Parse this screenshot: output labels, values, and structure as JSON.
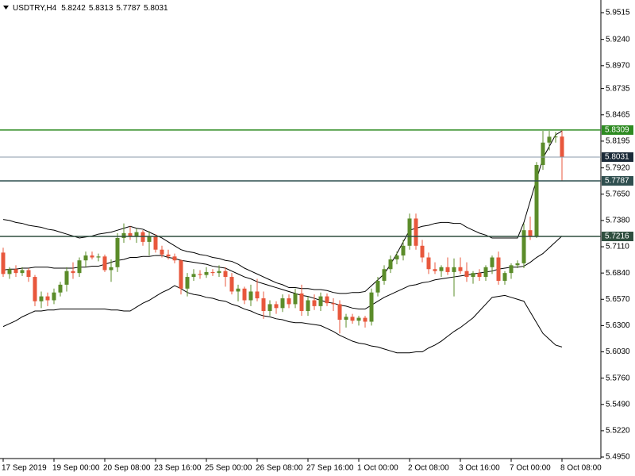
{
  "chart_data": {
    "type": "candlestick",
    "symbol": "USDTRY,H4",
    "categories": [
      "17 Sep 2019",
      null,
      null,
      null,
      null,
      null,
      null,
      null,
      "19 Sep 00:00",
      null,
      null,
      null,
      null,
      null,
      null,
      null,
      "20 Sep 08:00",
      null,
      null,
      null,
      null,
      null,
      null,
      null,
      "23 Sep 16:00",
      null,
      null,
      null,
      null,
      null,
      null,
      null,
      "25 Sep 00:00",
      null,
      null,
      null,
      null,
      null,
      null,
      null,
      "26 Sep 08:00",
      null,
      null,
      null,
      null,
      null,
      null,
      null,
      "27 Sep 16:00",
      null,
      null,
      null,
      null,
      null,
      null,
      null,
      "1 Oct 00:00",
      null,
      null,
      null,
      null,
      null,
      null,
      null,
      "2 Oct 08:00",
      null,
      null,
      null,
      null,
      null,
      null,
      null,
      "3 Oct 16:00",
      null,
      null,
      null,
      null,
      null,
      null,
      null,
      "7 Oct 00:00",
      null,
      null,
      null,
      null,
      null,
      null,
      null,
      "8 Oct 08:00"
    ],
    "open": [
      5.705,
      5.683,
      5.688,
      5.684,
      5.687,
      5.68,
      5.655,
      5.66,
      5.656,
      5.664,
      5.672,
      5.686,
      5.684,
      5.697,
      5.702,
      5.7,
      5.701,
      5.687,
      5.69,
      5.72,
      5.725,
      5.722,
      5.726,
      5.716,
      5.722,
      5.708,
      5.703,
      5.701,
      5.697,
      5.668,
      5.68,
      5.683,
      5.682,
      5.685,
      5.684,
      5.686,
      5.68,
      5.665,
      5.668,
      5.656,
      5.665,
      5.658,
      5.645,
      5.652,
      5.648,
      5.658,
      5.652,
      5.663,
      5.645,
      5.656,
      5.65,
      5.66,
      5.653,
      5.652,
      5.636,
      5.639,
      5.635,
      5.638,
      5.634,
      5.664,
      5.676,
      5.688,
      5.698,
      5.702,
      5.712,
      5.74,
      5.712,
      5.7,
      5.688,
      5.686,
      5.69,
      5.685,
      5.69,
      5.686,
      5.68,
      5.684,
      5.68,
      5.69,
      5.7,
      5.676,
      5.684,
      5.692,
      5.694,
      5.728,
      5.722,
      5.795,
      5.818,
      5.824,
      5.8242
    ],
    "high": [
      5.71,
      5.69,
      5.692,
      5.69,
      5.689,
      5.682,
      5.665,
      5.664,
      5.668,
      5.675,
      5.69,
      5.695,
      5.7,
      5.706,
      5.706,
      5.704,
      5.703,
      5.698,
      5.725,
      5.735,
      5.732,
      5.73,
      5.728,
      5.727,
      5.724,
      5.712,
      5.708,
      5.704,
      5.698,
      5.684,
      5.688,
      5.687,
      5.69,
      5.688,
      5.692,
      5.69,
      5.684,
      5.672,
      5.67,
      5.672,
      5.678,
      5.665,
      5.656,
      5.655,
      5.662,
      5.662,
      5.668,
      5.672,
      5.66,
      5.662,
      5.664,
      5.663,
      5.658,
      5.656,
      5.642,
      5.642,
      5.64,
      5.64,
      5.668,
      5.68,
      5.692,
      5.702,
      5.706,
      5.718,
      5.745,
      5.745,
      5.718,
      5.705,
      5.695,
      5.692,
      5.7,
      5.699,
      5.7,
      5.695,
      5.686,
      5.688,
      5.692,
      5.702,
      5.706,
      5.686,
      5.694,
      5.697,
      5.735,
      5.742,
      5.798,
      5.83,
      5.83,
      5.829,
      5.8313
    ],
    "low": [
      5.68,
      5.678,
      5.68,
      5.681,
      5.675,
      5.65,
      5.648,
      5.65,
      5.652,
      5.66,
      5.665,
      5.678,
      5.68,
      5.69,
      5.698,
      5.696,
      5.685,
      5.675,
      5.685,
      5.715,
      5.718,
      5.715,
      5.712,
      5.702,
      5.705,
      5.7,
      5.698,
      5.694,
      5.662,
      5.66,
      5.676,
      5.678,
      5.679,
      5.681,
      5.68,
      5.67,
      5.662,
      5.655,
      5.652,
      5.65,
      5.655,
      5.637,
      5.64,
      5.642,
      5.644,
      5.648,
      5.648,
      5.64,
      5.64,
      5.646,
      5.645,
      5.65,
      5.645,
      5.622,
      5.628,
      5.632,
      5.63,
      5.628,
      5.63,
      5.66,
      5.672,
      5.684,
      5.693,
      5.697,
      5.708,
      5.708,
      5.695,
      5.683,
      5.683,
      5.68,
      5.682,
      5.66,
      5.683,
      5.675,
      5.673,
      5.676,
      5.676,
      5.683,
      5.672,
      5.672,
      5.678,
      5.689,
      5.689,
      5.718,
      5.72,
      5.79,
      5.81,
      5.818,
      5.7787
    ],
    "close": [
      5.683,
      5.688,
      5.684,
      5.687,
      5.68,
      5.655,
      5.66,
      5.656,
      5.664,
      5.672,
      5.686,
      5.684,
      5.697,
      5.702,
      5.7,
      5.701,
      5.687,
      5.69,
      5.72,
      5.725,
      5.722,
      5.726,
      5.716,
      5.722,
      5.708,
      5.703,
      5.701,
      5.697,
      5.668,
      5.68,
      5.683,
      5.682,
      5.685,
      5.684,
      5.686,
      5.68,
      5.665,
      5.668,
      5.656,
      5.665,
      5.658,
      5.645,
      5.652,
      5.648,
      5.658,
      5.652,
      5.663,
      5.645,
      5.656,
      5.65,
      5.66,
      5.653,
      5.652,
      5.636,
      5.639,
      5.635,
      5.638,
      5.634,
      5.664,
      5.676,
      5.688,
      5.698,
      5.702,
      5.712,
      5.74,
      5.712,
      5.7,
      5.688,
      5.686,
      5.69,
      5.685,
      5.69,
      5.686,
      5.68,
      5.684,
      5.68,
      5.69,
      5.7,
      5.676,
      5.684,
      5.692,
      5.694,
      5.728,
      5.722,
      5.795,
      5.818,
      5.824,
      5.8242,
      5.8031
    ],
    "up_color": "#5b8c2a",
    "down_color": "#e8573c",
    "bands": {
      "color": "#000000",
      "upper": [
        5.739,
        5.738,
        5.736,
        5.735,
        5.733,
        5.732,
        5.731,
        5.729,
        5.728,
        5.726,
        5.724,
        5.722,
        5.72,
        5.721,
        5.722,
        5.724,
        5.725,
        5.726,
        5.728,
        5.73,
        5.732,
        5.73,
        5.729,
        5.726,
        5.723,
        5.72,
        5.716,
        5.712,
        5.708,
        5.706,
        5.705,
        5.703,
        5.702,
        5.7,
        5.699,
        5.697,
        5.696,
        5.693,
        5.689,
        5.686,
        5.683,
        5.68,
        5.677,
        5.674,
        5.672,
        5.669,
        5.669,
        5.668,
        5.668,
        5.667,
        5.667,
        5.666,
        5.664,
        5.663,
        5.663,
        5.664,
        5.664,
        5.665,
        5.671,
        5.677,
        5.683,
        5.693,
        5.704,
        5.716,
        5.728,
        5.73,
        5.732,
        5.733,
        5.735,
        5.736,
        5.736,
        5.735,
        5.735,
        5.731,
        5.728,
        5.725,
        5.723,
        5.72,
        5.72,
        5.72,
        5.72,
        5.72,
        5.736,
        5.758,
        5.78,
        5.802,
        5.814,
        5.826,
        5.83
      ],
      "middle": [
        5.687,
        5.688,
        5.688,
        5.689,
        5.689,
        5.69,
        5.69,
        5.69,
        5.689,
        5.689,
        5.689,
        5.689,
        5.69,
        5.69,
        5.691,
        5.691,
        5.693,
        5.695,
        5.697,
        5.698,
        5.7,
        5.7,
        5.701,
        5.701,
        5.702,
        5.702,
        5.7,
        5.699,
        5.697,
        5.696,
        5.695,
        5.694,
        5.693,
        5.691,
        5.69,
        5.689,
        5.686,
        5.683,
        5.68,
        5.678,
        5.675,
        5.673,
        5.671,
        5.669,
        5.667,
        5.665,
        5.663,
        5.661,
        5.66,
        5.658,
        5.656,
        5.654,
        5.653,
        5.651,
        5.65,
        5.648,
        5.647,
        5.647,
        5.651,
        5.655,
        5.659,
        5.662,
        5.665,
        5.668,
        5.671,
        5.672,
        5.674,
        5.675,
        5.677,
        5.678,
        5.679,
        5.68,
        5.681,
        5.682,
        5.683,
        5.684,
        5.685,
        5.686,
        5.688,
        5.689,
        5.69,
        5.69,
        5.691,
        5.695,
        5.7,
        5.704,
        5.71,
        5.716,
        5.722
      ],
      "lower": [
        5.629,
        5.632,
        5.635,
        5.639,
        5.642,
        5.645,
        5.645,
        5.646,
        5.646,
        5.647,
        5.647,
        5.647,
        5.647,
        5.647,
        5.647,
        5.647,
        5.647,
        5.646,
        5.646,
        5.645,
        5.645,
        5.649,
        5.653,
        5.656,
        5.66,
        5.664,
        5.667,
        5.671,
        5.668,
        5.664,
        5.662,
        5.661,
        5.659,
        5.658,
        5.656,
        5.655,
        5.652,
        5.65,
        5.647,
        5.645,
        5.642,
        5.64,
        5.639,
        5.637,
        5.636,
        5.634,
        5.633,
        5.633,
        5.632,
        5.631,
        5.63,
        5.627,
        5.624,
        5.62,
        5.617,
        5.614,
        5.612,
        5.611,
        5.609,
        5.608,
        5.606,
        5.604,
        5.602,
        5.602,
        5.602,
        5.603,
        5.603,
        5.607,
        5.61,
        5.614,
        5.619,
        5.624,
        5.628,
        5.633,
        5.638,
        5.645,
        5.652,
        5.659,
        5.66,
        5.661,
        5.659,
        5.657,
        5.655,
        5.644,
        5.633,
        5.622,
        5.616,
        5.61,
        5.608
      ]
    },
    "levels": [
      {
        "value": 5.8309,
        "color": "#2e8b22"
      },
      {
        "value": 5.8031,
        "color": "#1b2a38",
        "line_color": "#8a9aa8"
      },
      {
        "value": 5.7787,
        "color": "#2f4f4f"
      },
      {
        "value": 5.7216,
        "color": "#2f4f3f"
      }
    ],
    "ylim": [
      5.4934,
      5.9645
    ],
    "yticks": [
      5.9515,
      {
        "value": 5.924,
        "label": "5.9240"
      },
      {
        "value": 5.897,
        "label": "5.8970"
      },
      5.8735,
      5.8465,
      5.8195,
      {
        "value": 5.792,
        "label": "5.7920"
      },
      {
        "value": 5.765,
        "label": "5.7650"
      },
      {
        "value": 5.738,
        "label": "5.7380"
      },
      {
        "value": 5.711,
        "label": "5.7110"
      },
      {
        "value": 5.684,
        "label": "5.6840"
      },
      {
        "value": 5.657,
        "label": "5.6570"
      },
      {
        "value": 5.63,
        "label": "5.6300"
      },
      {
        "value": 5.603,
        "label": "5.6030"
      },
      {
        "value": 5.576,
        "label": "5.5760"
      },
      {
        "value": 5.549,
        "label": "5.5490"
      },
      {
        "value": 5.522,
        "label": "5.5220"
      },
      {
        "value": 5.495,
        "label": "5.4950"
      }
    ]
  }
}
